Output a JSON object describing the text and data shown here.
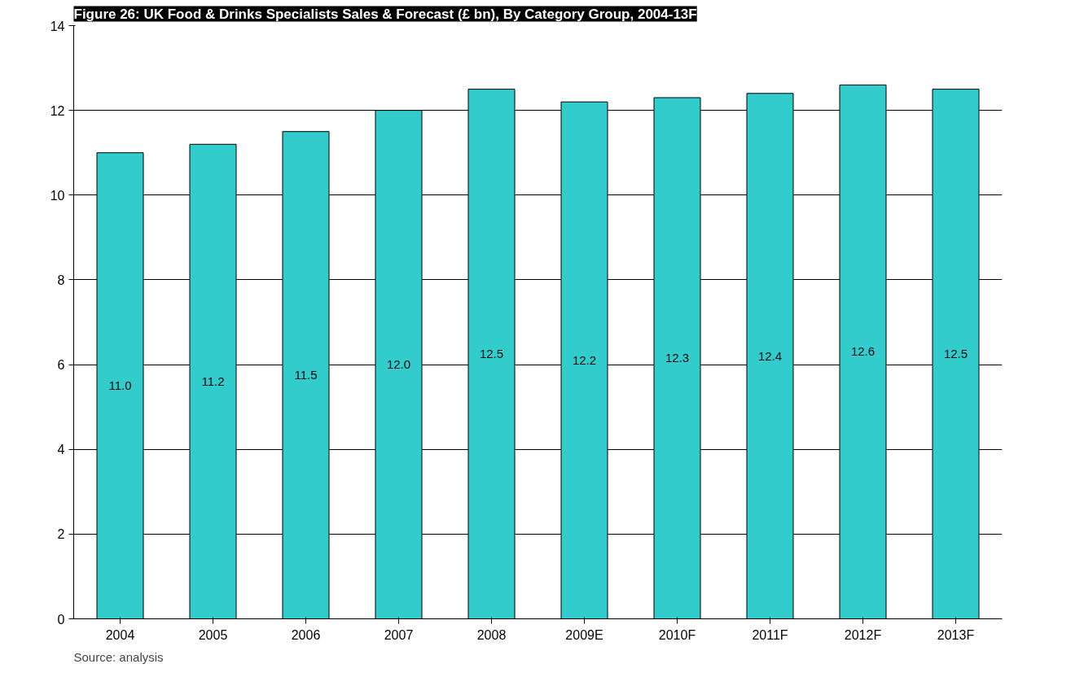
{
  "chart_data": {
    "type": "bar",
    "title": "Figure 26: UK Food & Drinks Specialists Sales & Forecast (£ bn), By Category Group, 2004-13F",
    "categories": [
      "2004",
      "2005",
      "2006",
      "2007",
      "2008",
      "2009E",
      "2010F",
      "2011F",
      "2012F",
      "2013F"
    ],
    "values": [
      11.0,
      11.2,
      11.5,
      12.0,
      12.5,
      12.2,
      12.3,
      12.4,
      12.6,
      12.5
    ],
    "color": "#33cccc",
    "ylim": [
      0,
      14
    ],
    "yticks": [
      0,
      2,
      4,
      6,
      8,
      10,
      12,
      14
    ],
    "grid": "y",
    "value_labels": [
      "11.0",
      "11.2",
      "11.5",
      "12.0",
      "12.5",
      "12.2",
      "12.3",
      "12.4",
      "12.6",
      "12.5"
    ],
    "annotations": [
      "Source: analysis"
    ]
  }
}
